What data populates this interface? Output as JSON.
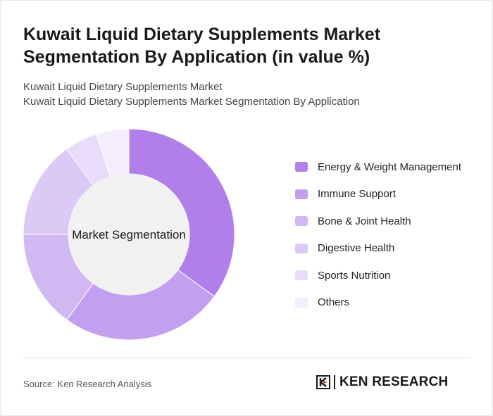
{
  "title": "Kuwait Liquid Dietary Supplements Market Segmentation By Application (in value %)",
  "subtitle_lines": [
    "Kuwait Liquid Dietary Supplements Market",
    "Kuwait Liquid Dietary Supplements Market Segmentation By Application"
  ],
  "chart_data": {
    "type": "pie",
    "center_label": "Market Segmentation",
    "categories": [
      "Energy & Weight Management",
      "Immune Support",
      "Bone & Joint Health",
      "Digestive Health",
      "Sports Nutrition",
      "Others"
    ],
    "values": [
      35,
      25,
      15,
      15,
      5,
      5
    ],
    "colors": [
      "#b07fea",
      "#c39ff0",
      "#d2b8f3",
      "#dcc9f5",
      "#e8dcf8",
      "#f3edfc"
    ],
    "legend_position": "right"
  },
  "source": "Source: Ken Research Analysis",
  "brand": {
    "name": "KEN RESEARCH",
    "color": "#1a1a1a"
  }
}
